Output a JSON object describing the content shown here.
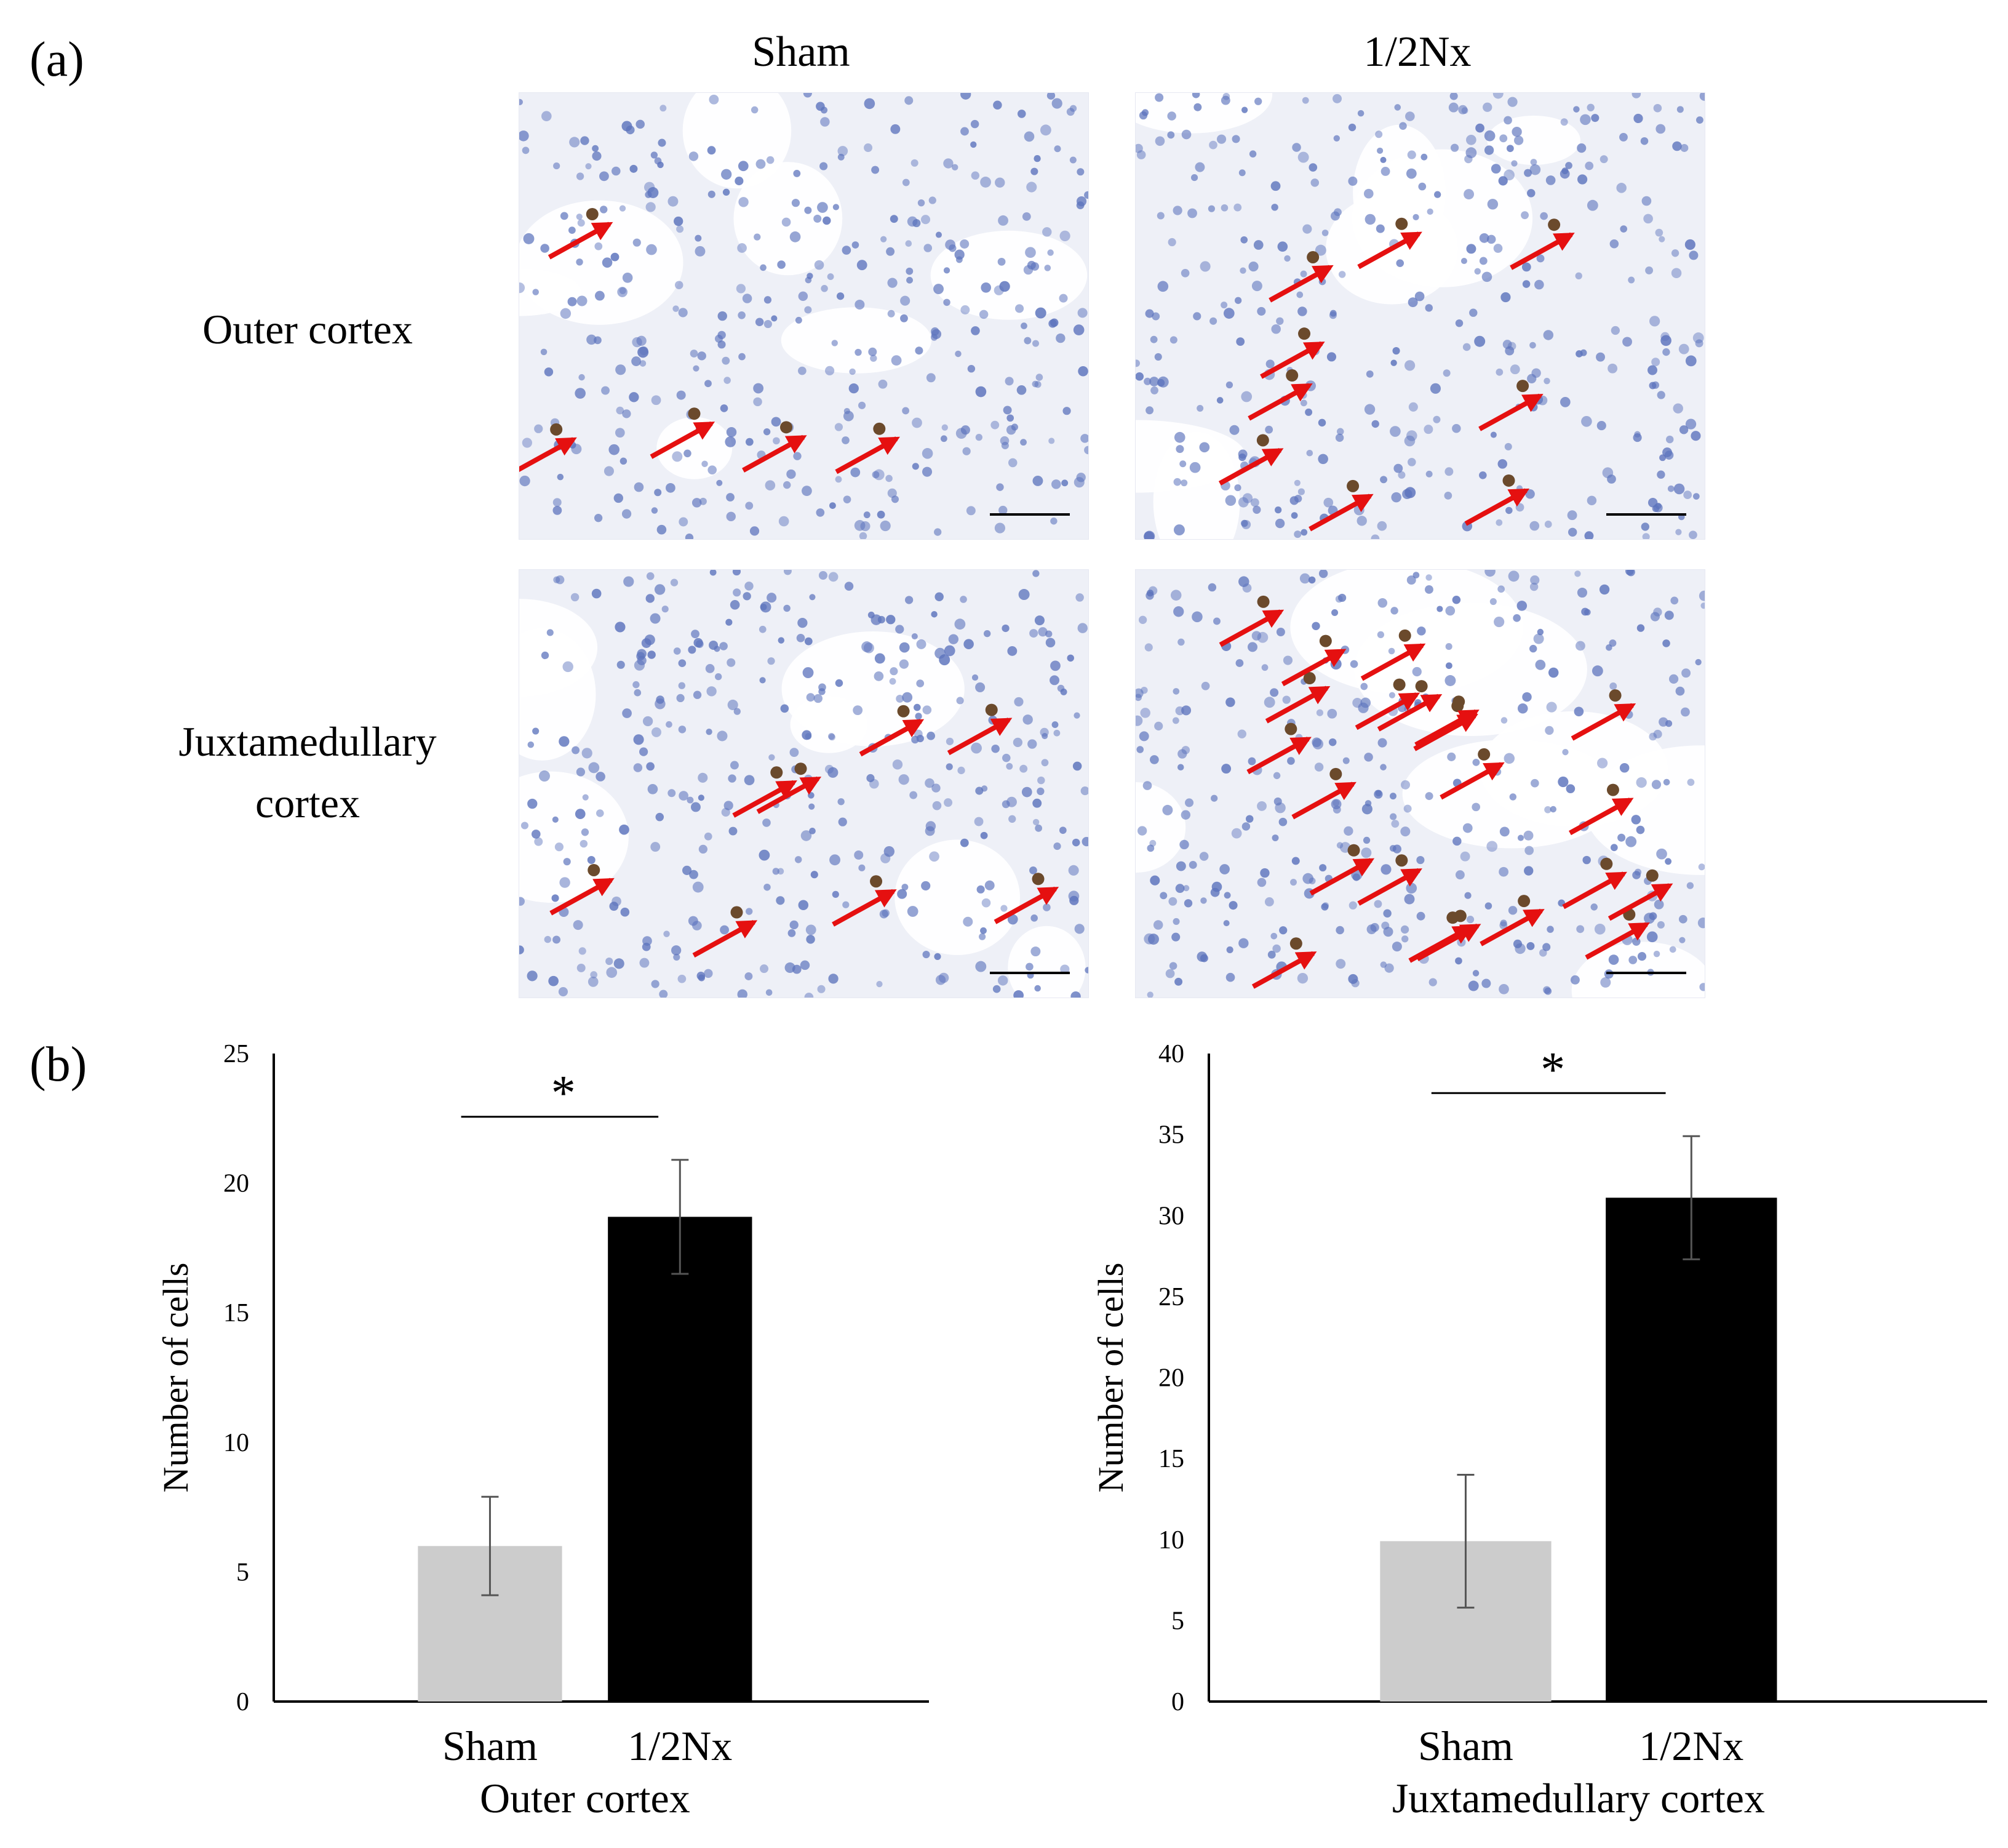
{
  "panel_a": {
    "label": "(a)",
    "columns": [
      "Sham",
      "1/2Nx"
    ],
    "rows": [
      {
        "line1": "Outer cortex",
        "line2": ""
      },
      {
        "line1": "Juxtamedullary",
        "line2": "cortex"
      }
    ],
    "arrow_color": "#e51010",
    "stain_colors": {
      "nuclei": "#5d74bd",
      "positive": "#6b4a2c",
      "background": "#eef0f7"
    }
  },
  "panel_b": {
    "label": "(b)"
  },
  "chart_data": [
    {
      "type": "bar",
      "categories": [
        "Sham",
        "1/2Nx"
      ],
      "values": [
        6.0,
        18.7
      ],
      "errors": [
        1.9,
        2.2
      ],
      "colors": [
        "#cccccc",
        "#000000"
      ],
      "ylabel": "Number of cells",
      "xlabel": "Outer cortex",
      "ylim": [
        0,
        25
      ],
      "yticks": [
        0,
        5,
        10,
        15,
        20,
        25
      ],
      "significance": "*"
    },
    {
      "type": "bar",
      "categories": [
        "Sham",
        "1/2Nx"
      ],
      "values": [
        9.9,
        31.1
      ],
      "errors": [
        4.1,
        3.8
      ],
      "colors": [
        "#cccccc",
        "#000000"
      ],
      "ylabel": "Number of cells",
      "xlabel": "Juxtamedullary cortex",
      "ylim": [
        0,
        40
      ],
      "yticks": [
        0,
        5,
        10,
        15,
        20,
        25,
        30,
        35,
        40
      ],
      "significance": "*"
    }
  ]
}
